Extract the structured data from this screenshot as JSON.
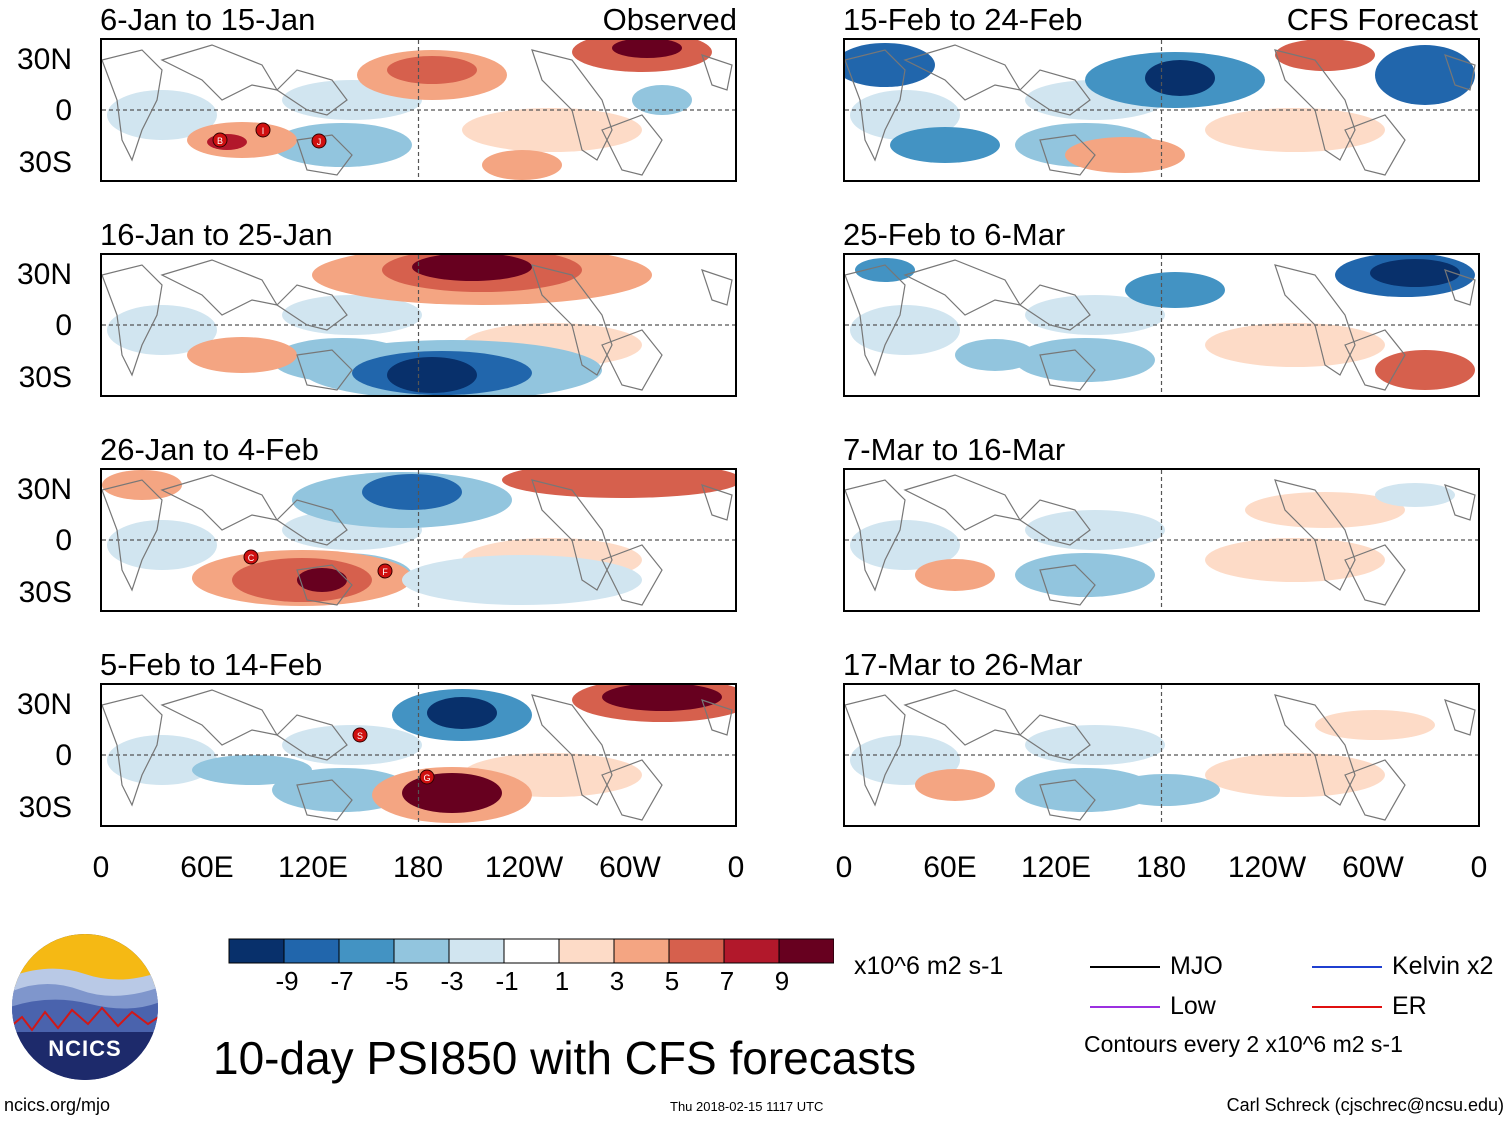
{
  "panels": {
    "left": [
      {
        "title": "6-Jan to 15-Jan",
        "tag": "Observed",
        "storms": [
          "B",
          "I",
          "J"
        ]
      },
      {
        "title": "16-Jan to 25-Jan",
        "tag": "",
        "storms": []
      },
      {
        "title": "26-Jan to 4-Feb",
        "tag": "",
        "storms": [
          "C",
          "F"
        ]
      },
      {
        "title": "5-Feb to 14-Feb",
        "tag": "",
        "storms": [
          "S",
          "G"
        ]
      }
    ],
    "right": [
      {
        "title": "15-Feb to 24-Feb",
        "tag": "CFS Forecast"
      },
      {
        "title": "25-Feb to 6-Mar",
        "tag": ""
      },
      {
        "title": "7-Mar to 16-Mar",
        "tag": ""
      },
      {
        "title": "17-Mar to 26-Mar",
        "tag": ""
      }
    ]
  },
  "y_axis": [
    "30N",
    "0",
    "30S"
  ],
  "x_axis": [
    "0",
    "60E",
    "120E",
    "180",
    "120W",
    "60W",
    "0"
  ],
  "colorbar": {
    "labels": [
      "-9",
      "-7",
      "-5",
      "-3",
      "-1",
      "1",
      "3",
      "5",
      "7",
      "9"
    ],
    "units": "x10^6 m2 s-1",
    "colors": [
      "#08306b",
      "#2166ac",
      "#4393c3",
      "#92c5de",
      "#d1e5f0",
      "#ffffff",
      "#fddbc7",
      "#f4a582",
      "#d6604d",
      "#b2182b",
      "#67001f"
    ]
  },
  "legend": {
    "items": [
      {
        "label": "MJO",
        "color": "#000000"
      },
      {
        "label": "Kelvin x2",
        "color": "#1f3fd0"
      },
      {
        "label": "Low",
        "color": "#9b30e0"
      },
      {
        "label": "ER",
        "color": "#e01010"
      }
    ],
    "note": "Contours every 2 x10^6 m2 s-1"
  },
  "title": "10-day PSI850 with CFS forecasts",
  "footer": {
    "site": "ncics.org/mjo",
    "timestamp": "Thu 2018-02-15 1117 UTC",
    "author": "Carl Schreck (cjschrec@ncsu.edu)"
  },
  "logo": {
    "text": "NCICS"
  }
}
